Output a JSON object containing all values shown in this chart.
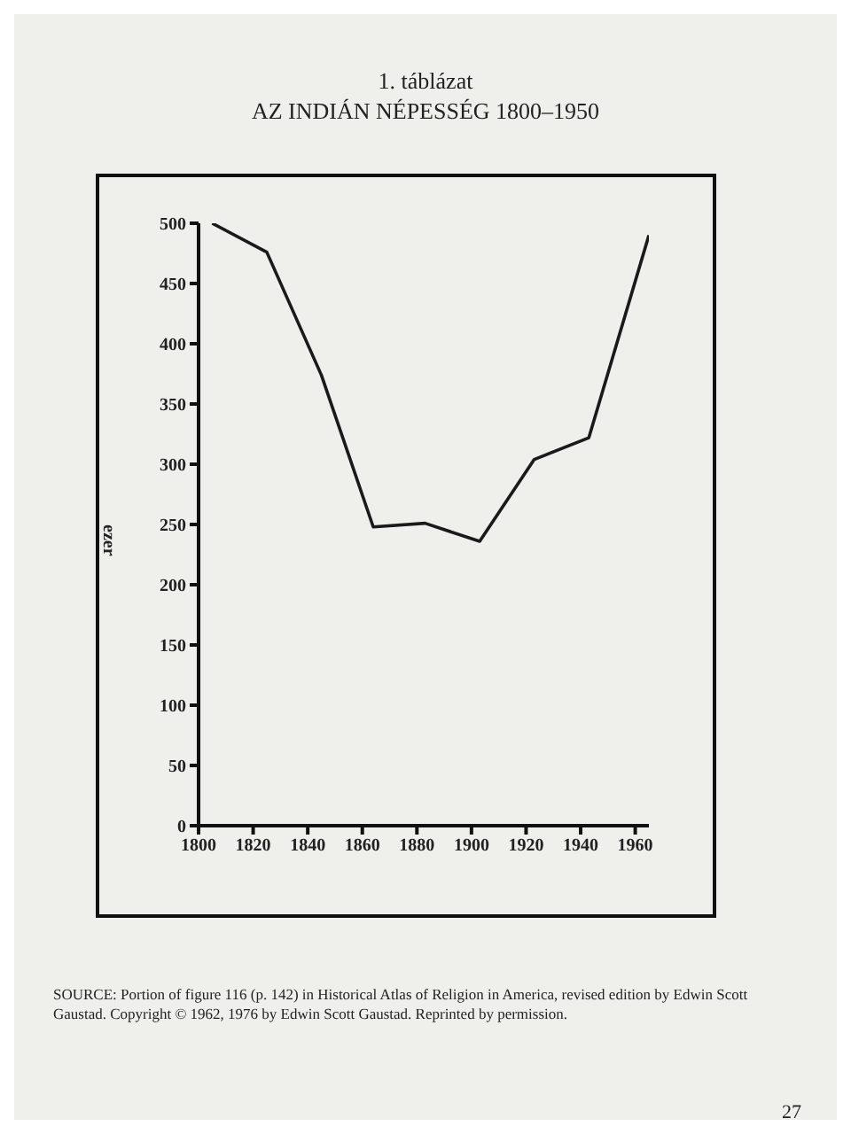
{
  "chart_data": {
    "type": "line",
    "title": "AZ INDIÁN NÉPESSÉG 1800–1950",
    "subtitle": "1. táblázat",
    "ylabel": "ezer",
    "x": [
      1805,
      1825,
      1845,
      1864,
      1883,
      1903,
      1923,
      1943,
      1965
    ],
    "series": [
      {
        "color": "#1a1a1a",
        "values": [
          500,
          476,
          374,
          248,
          251,
          236,
          304,
          322,
          490
        ]
      }
    ],
    "xlim": [
      1800,
      1965
    ],
    "xticks": [
      1800,
      1820,
      1840,
      1860,
      1880,
      1900,
      1920,
      1940,
      1960
    ],
    "ylim": [
      0,
      500
    ],
    "yticks": [
      0,
      50,
      100,
      150,
      200,
      250,
      300,
      350,
      400,
      450,
      500
    ],
    "grid": false,
    "legend": false,
    "marker": "none",
    "line_style": "solid",
    "annotations": [
      "SOURCE: Portion of figure 116 (p. 142) in Historical Atlas of Religion in America, revised edition by Edwin Scott Gaustad. Copyright © 1962, 1976 by Edwin Scott Gaustad. Reprinted by permission.",
      "27"
    ]
  }
}
